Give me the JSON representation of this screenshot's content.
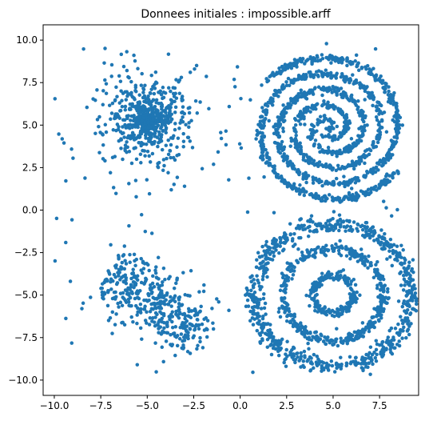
{
  "chart_data": {
    "type": "scatter",
    "title": "Donnees initiales : impossible.arff",
    "xlabel": "",
    "ylabel": "",
    "xlim": [
      -10.6,
      9.6
    ],
    "ylim": [
      -10.9,
      10.9
    ],
    "xticks": [
      -10.0,
      -7.5,
      -5.0,
      -2.5,
      0.0,
      2.5,
      5.0,
      7.5
    ],
    "yticks": [
      -10.0,
      -7.5,
      -5.0,
      -2.5,
      0.0,
      2.5,
      5.0,
      7.5,
      10.0
    ],
    "xtick_labels": [
      "−10.0",
      "−7.5",
      "−5.0",
      "−2.5",
      "0.0",
      "2.5",
      "5.0",
      "7.5"
    ],
    "ytick_labels": [
      "−10.0",
      "−7.5",
      "−5.0",
      "−2.5",
      "0.0",
      "2.5",
      "5.0",
      "7.5",
      "10.0"
    ],
    "grid": false,
    "marker_color": "#1f77b4",
    "marker_size": 3.6,
    "clusters": [
      {
        "shape": "gaussian_blob",
        "center": [
          -5.0,
          5.3
        ],
        "spread": [
          1.3,
          1.3
        ],
        "count": 700
      },
      {
        "shape": "elongated_blob",
        "center": [
          -4.5,
          -5.5
        ],
        "axis_angle_deg": -38,
        "spread": [
          3.6,
          1.05
        ],
        "count": 420
      },
      {
        "shape": "double_spiral",
        "center": [
          4.8,
          4.8
        ],
        "max_radius": 4.4,
        "turns": 2.4,
        "count": 1500
      },
      {
        "shape": "concentric_rings",
        "center": [
          5.0,
          -5.0
        ],
        "radii": [
          1.1,
          2.7,
          4.2
        ],
        "ring_width": [
          0.12,
          0.15,
          0.25
        ],
        "counts": [
          220,
          420,
          700
        ]
      },
      {
        "shape": "uniform_noise",
        "x_range": [
          -10.0,
          9.0
        ],
        "y_range": [
          -10.0,
          10.0
        ],
        "count": 110
      }
    ]
  }
}
